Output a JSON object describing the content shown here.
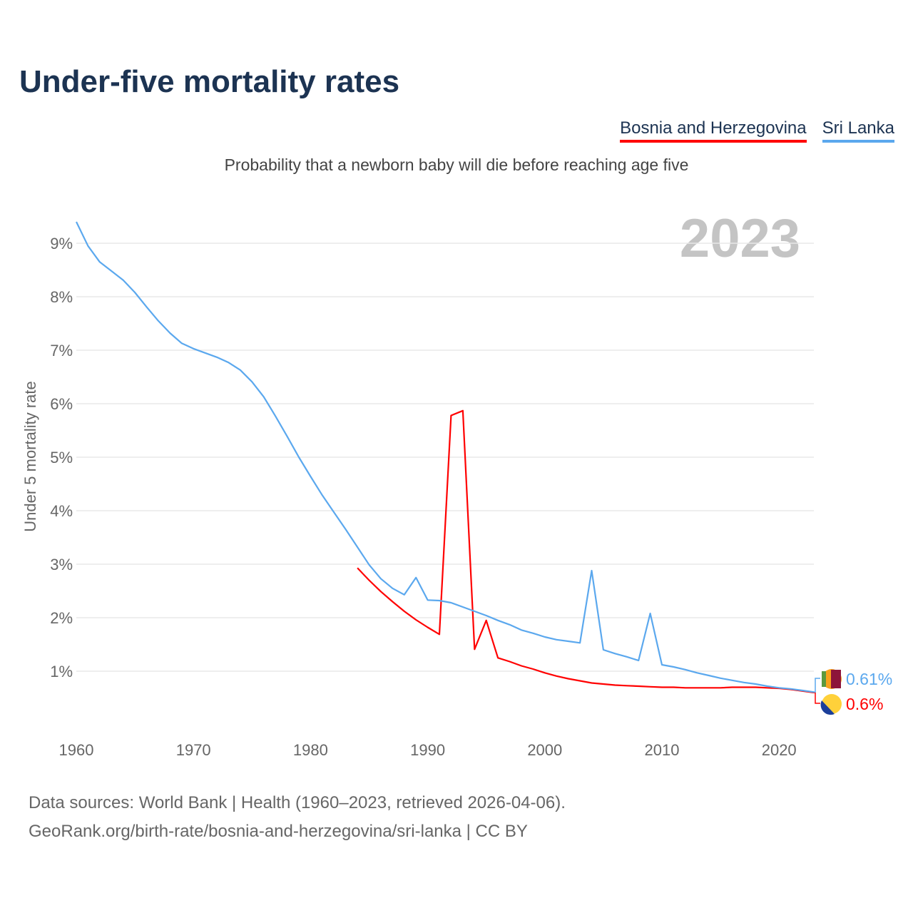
{
  "header": {
    "title": "Under-five mortality rates",
    "subtitle": "Probability that a newborn baby will die before reaching age five"
  },
  "chart_data": {
    "type": "line",
    "title": "Under-five mortality rates",
    "subtitle": "Probability that a newborn baby will die before reaching age five",
    "xlabel": "",
    "ylabel": "Under 5 mortality rate",
    "xlim": [
      1960,
      2023
    ],
    "ylim": [
      0,
      9.8
    ],
    "xticks": [
      1960,
      1970,
      1980,
      1990,
      2000,
      2010,
      2020
    ],
    "yticks": [
      1,
      2,
      3,
      4,
      5,
      6,
      7,
      8,
      9
    ],
    "ytick_labels": [
      "1%",
      "2%",
      "3%",
      "4%",
      "5%",
      "6%",
      "7%",
      "8%",
      "9%"
    ],
    "year_label": "2023",
    "grid": true,
    "legend_position": "top-right",
    "series": [
      {
        "name": "Bosnia and Herzegovina",
        "color": "#ff0000",
        "end_label": "0.6%",
        "start_year": 1984,
        "values": [
          2.93,
          2.7,
          2.49,
          2.3,
          2.12,
          1.96,
          1.82,
          1.69,
          5.78,
          5.87,
          1.41,
          1.95,
          1.25,
          1.18,
          1.1,
          1.04,
          0.97,
          0.91,
          0.86,
          0.82,
          0.78,
          0.76,
          0.74,
          0.73,
          0.72,
          0.71,
          0.7,
          0.7,
          0.69,
          0.69,
          0.69,
          0.69,
          0.7,
          0.7,
          0.7,
          0.69,
          0.68,
          0.66,
          0.63,
          0.6
        ]
      },
      {
        "name": "Sri Lanka",
        "color": "#5ba8ee",
        "end_label": "0.61%",
        "start_year": 1960,
        "values": [
          9.4,
          8.95,
          8.65,
          8.48,
          8.31,
          8.08,
          7.81,
          7.55,
          7.32,
          7.13,
          7.03,
          6.95,
          6.87,
          6.77,
          6.63,
          6.41,
          6.13,
          5.77,
          5.39,
          5.0,
          4.64,
          4.29,
          3.97,
          3.65,
          3.32,
          2.99,
          2.73,
          2.55,
          2.43,
          2.75,
          2.33,
          2.32,
          2.28,
          2.2,
          2.12,
          2.04,
          1.95,
          1.87,
          1.77,
          1.71,
          1.64,
          1.59,
          1.56,
          1.53,
          2.88,
          1.4,
          1.33,
          1.27,
          1.2,
          2.08,
          1.12,
          1.08,
          1.03,
          0.97,
          0.92,
          0.87,
          0.83,
          0.79,
          0.76,
          0.72,
          0.69,
          0.67,
          0.64,
          0.61
        ]
      }
    ]
  },
  "footer": {
    "line1": "Data sources: World Bank | Health (1960–2023, retrieved 2026-04-06).",
    "line2": "GeoRank.org/birth-rate/bosnia-and-herzegovina/sri-lanka | CC BY"
  }
}
